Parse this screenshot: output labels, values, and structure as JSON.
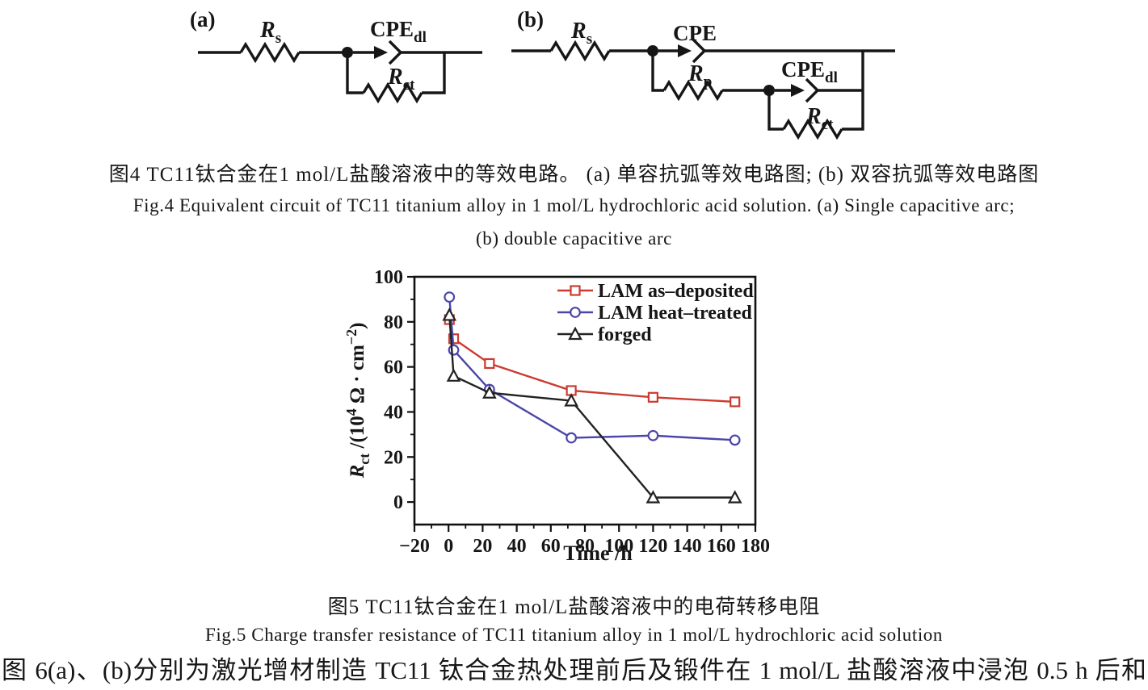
{
  "figure4": {
    "caption_cn": "图4 TC11钛合金在1 mol/L盐酸溶液中的等效电路。 (a) 单容抗弧等效电路图; (b) 双容抗弧等效电路图",
    "caption_en_line1": "Fig.4  Equivalent circuit of TC11 titanium alloy in 1 mol/L hydrochloric acid solution. (a) Single capacitive arc;",
    "caption_en_line2": "(b) double capacitive arc",
    "circuit_a": {
      "panel_label": "(a)",
      "rs_main": "R",
      "rs_sub": "s",
      "cpedl_main": "CPE",
      "cpedl_sub": "dl",
      "rct_main": "R",
      "rct_sub": "ct"
    },
    "circuit_b": {
      "panel_label": "(b)",
      "rs_main": "R",
      "rs_sub": "s",
      "cpe_label": "CPE",
      "rp_main": "R",
      "rp_sub": "p",
      "cpedl_main": "CPE",
      "cpedl_sub": "dl",
      "rct_main": "R",
      "rct_sub": "ct"
    }
  },
  "figure5": {
    "caption_cn": "图5 TC11钛合金在1 mol/L盐酸溶液中的电荷转移电阻",
    "caption_en": "Fig.5  Charge transfer resistance of TC11 titanium alloy in 1 mol/L hydrochloric acid solution"
  },
  "body_text": "图 6(a)、(b)分别为激光增材制造 TC11 钛合金热处理前后及锻件在 1 mol/L 盐酸溶液中浸泡 0.5 h 后和",
  "chart_data": {
    "type": "line",
    "xlabel": "Time /h",
    "ylabel_text": "Rct /(10^4 Ω · cm^-2)",
    "ylabel_parts": {
      "r": "R",
      "r_sub": "ct",
      "mid": " /(10",
      "sup1": "4",
      "unit": " Ω · cm",
      "sup2": "−2",
      "close": ")"
    },
    "xlim": [
      -20,
      180
    ],
    "ylim": [
      -10,
      100
    ],
    "x_tick_values": [
      -20,
      0,
      20,
      40,
      60,
      80,
      100,
      120,
      140,
      160,
      180
    ],
    "x_tick_labels": [
      "−20",
      "0",
      "20",
      "40",
      "60",
      "80",
      "100",
      "120",
      "140",
      "160",
      "180"
    ],
    "y_tick_values": [
      0,
      20,
      40,
      60,
      80,
      100
    ],
    "y_tick_labels": [
      "0",
      "20",
      "40",
      "60",
      "80",
      "100"
    ],
    "minor_tick_step": 10,
    "grid": false,
    "legend_position": "top-right-inside",
    "frame_color": "#111111",
    "series": [
      {
        "name": "LAM as–deposited",
        "color": "#cb3b31",
        "marker": "square",
        "x": [
          0.5,
          3,
          24,
          72,
          120,
          168
        ],
        "y": [
          81,
          72.5,
          61.5,
          49.5,
          46.5,
          44.5
        ]
      },
      {
        "name": "LAM heat–treated",
        "color": "#4b46ab",
        "marker": "circle",
        "x": [
          0.5,
          3,
          24,
          72,
          120,
          168
        ],
        "y": [
          91,
          67.5,
          50,
          28.5,
          29.5,
          27.5
        ]
      },
      {
        "name": "forged",
        "color": "#222222",
        "marker": "triangle",
        "x": [
          0.5,
          3,
          24,
          72,
          120,
          168
        ],
        "y": [
          83,
          56,
          48.5,
          45,
          2,
          2
        ]
      }
    ]
  }
}
